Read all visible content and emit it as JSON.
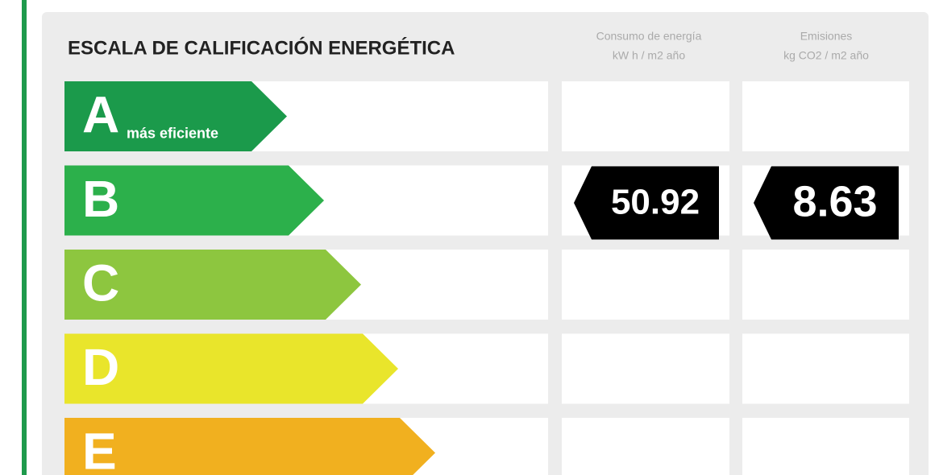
{
  "header": {
    "title": "ESCALA DE CALIFICACIÓN ENERGÉTICA"
  },
  "columns": [
    {
      "title": "Consumo de energía",
      "unit": "kW h / m2 año"
    },
    {
      "title": "Emisiones",
      "unit": "kg CO2 / m2 año"
    }
  ],
  "rows": [
    {
      "letter": "A",
      "note": "más eficiente",
      "color": "#1b9a4b"
    },
    {
      "letter": "B",
      "color": "#2cb04b",
      "consumption": 50.92,
      "emissions": 8.63
    },
    {
      "letter": "C",
      "color": "#8dc63f"
    },
    {
      "letter": "D",
      "color": "#e9e52b"
    },
    {
      "letter": "E",
      "color": "#f1b01f"
    }
  ]
}
